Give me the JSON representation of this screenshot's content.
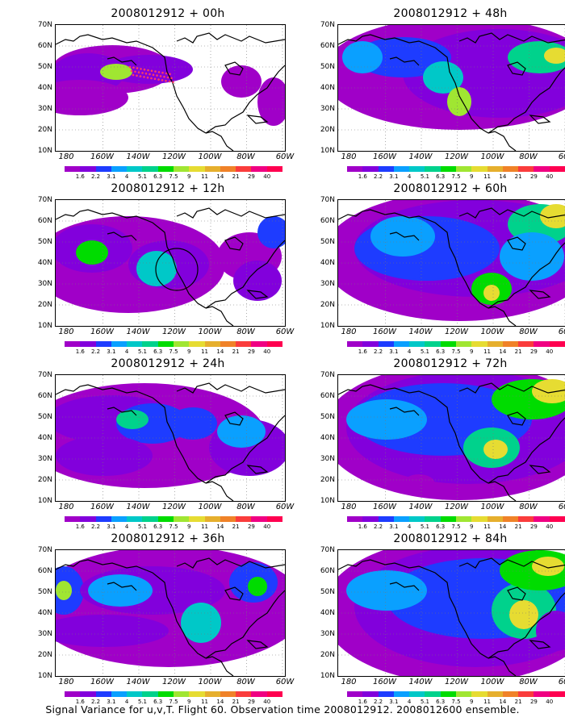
{
  "panel_titles": [
    "2008012912 + 00h",
    "2008012912 + 12h",
    "2008012912 + 24h",
    "2008012912 + 36h",
    "2008012912 + 48h",
    "2008012912 + 60h",
    "2008012912 + 72h",
    "2008012912 + 84h"
  ],
  "lat_labels": [
    "70N",
    "60N",
    "50N",
    "40N",
    "30N",
    "20N",
    "10N"
  ],
  "lon_labels": [
    "180",
    "160W",
    "140W",
    "120W",
    "100W",
    "80W",
    "60W"
  ],
  "colorbar": {
    "labels": [
      "1.6",
      "2.2",
      "3.1",
      "4",
      "5.1",
      "6.3",
      "7.5",
      "9",
      "11",
      "14",
      "21",
      "29",
      "40"
    ],
    "colors": [
      "#a000c8",
      "#8200dc",
      "#1e3cff",
      "#0aa0ff",
      "#00c8c8",
      "#00d28c",
      "#00dc00",
      "#a0e632",
      "#e6dc32",
      "#e6af2d",
      "#f08228",
      "#fa3c3c",
      "#f00082"
    ]
  },
  "footer": "Signal Variance for u,v,T. Flight 60. Observation time 2008012912. 2008012600 ensemble."
}
